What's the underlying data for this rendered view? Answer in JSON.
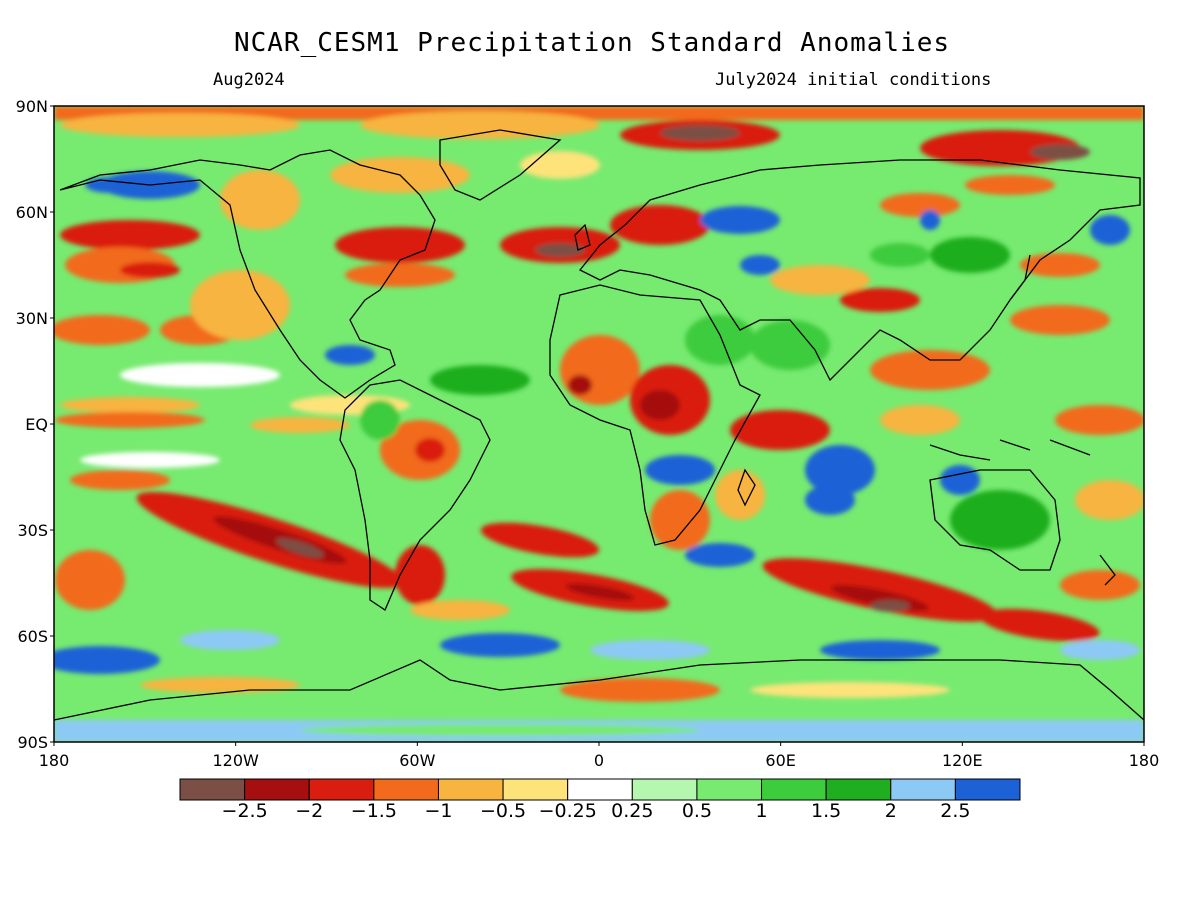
{
  "title": "NCAR_CESM1 Precipitation Standard Anomalies",
  "subtitle_left": "Aug2024",
  "subtitle_right": "July2024 initial conditions",
  "map": {
    "lat_ticks": [
      "90N",
      "60N",
      "30N",
      "EQ",
      "30S",
      "60S",
      "90S"
    ],
    "lon_ticks": [
      "180",
      "120W",
      "60W",
      "0",
      "60E",
      "120E",
      "180"
    ]
  },
  "colorbar": {
    "colors": [
      "#7b4f45",
      "#a50f0f",
      "#d91e0f",
      "#f26b1d",
      "#f7b43f",
      "#fde37a",
      "#ffffff",
      "#b6f7b0",
      "#77ea70",
      "#3ccc3c",
      "#1fae1f",
      "#8dc9f5",
      "#1c62d6"
    ],
    "labels": [
      "−2.5",
      "−2",
      "−1.5",
      "−1",
      "−0.5",
      "−0.25",
      "0.25",
      "0.5",
      "1",
      "1.5",
      "2",
      "2.5"
    ]
  }
}
